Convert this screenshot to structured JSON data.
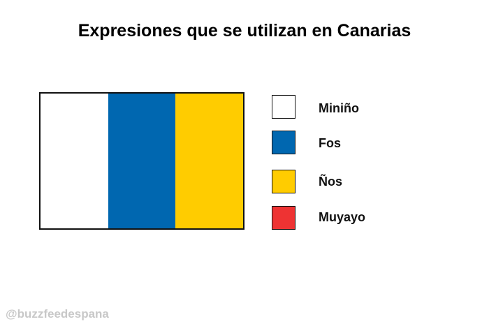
{
  "title": "Expresiones que se utilizan en Canarias",
  "flag": {
    "stripes": [
      {
        "color": "#ffffff"
      },
      {
        "color": "#0067b0"
      },
      {
        "color": "#ffcc00"
      }
    ]
  },
  "legend": [
    {
      "label": "Miniño",
      "color": "#ffffff"
    },
    {
      "label": "Fos",
      "color": "#0067b0"
    },
    {
      "label": "Ños",
      "color": "#ffcc00"
    },
    {
      "label": "Muyayo",
      "color": "#ee3333"
    }
  ],
  "watermark": "@buzzfeedespana"
}
